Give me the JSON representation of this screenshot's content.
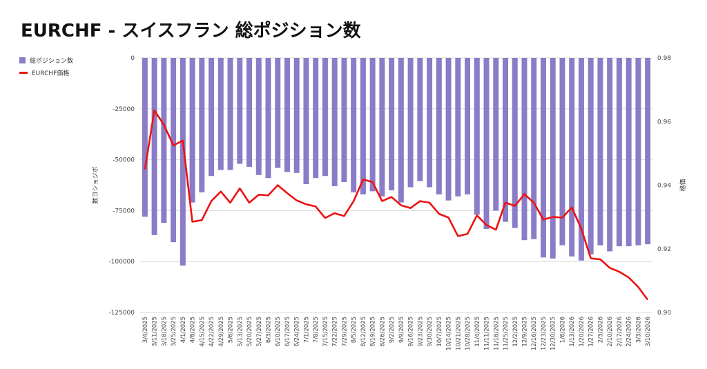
{
  "chart_data": {
    "type": "bar+line",
    "title": "EURCHF - スイスフラン 総ポジション数",
    "ylabel_left": "数ヨショジボ",
    "ylabel_right": "格価",
    "y_left_range": [
      -125000,
      0
    ],
    "y_left_ticks": [
      "0",
      "-25000",
      "-50000",
      "-75000",
      "-100000",
      "-125000"
    ],
    "y_right_range": [
      0.9,
      0.98
    ],
    "y_right_ticks": [
      "0.98",
      "0.96",
      "0.94",
      "0.92",
      "0.90"
    ],
    "grid": true,
    "legend_position": "top-left",
    "categories": [
      "3/4/2025",
      "3/11/2025",
      "3/18/2025",
      "3/25/2025",
      "4/1/2025",
      "4/8/2025",
      "4/15/2025",
      "4/22/2025",
      "4/29/2025",
      "5/6/2025",
      "5/13/2025",
      "5/20/2025",
      "5/27/2025",
      "6/3/2025",
      "6/10/2025",
      "6/17/2025",
      "6/24/2025",
      "7/1/2025",
      "7/8/2025",
      "7/15/2025",
      "7/22/2025",
      "7/29/2025",
      "8/5/2025",
      "8/12/2025",
      "8/19/2025",
      "8/26/2025",
      "9/2/2025",
      "9/9/2025",
      "9/16/2025",
      "9/23/2025",
      "9/30/2025",
      "10/7/2025",
      "10/14/2025",
      "10/21/2025",
      "10/28/2025",
      "11/4/2025",
      "11/11/2025",
      "11/18/2025",
      "11/25/2025",
      "12/2/2025",
      "12/9/2025",
      "12/16/2025",
      "12/23/2025",
      "12/30/2025",
      "1/6/2026",
      "1/13/2026",
      "1/20/2026",
      "1/27/2026",
      "2/3/2026",
      "2/10/2026",
      "2/17/2026",
      "2/24/2026",
      "3/3/2026",
      "3/10/2026"
    ],
    "series": [
      {
        "name": "総ポジション数",
        "type": "bar",
        "axis": "left",
        "color": "#8a7cc6",
        "values": [
          -78000,
          -87000,
          -81000,
          -90500,
          -102000,
          -71000,
          -66000,
          -58000,
          -55000,
          -55000,
          -52000,
          -53500,
          -57500,
          -59000,
          -54000,
          -56000,
          -56500,
          -62000,
          -59000,
          -58000,
          -63000,
          -61000,
          -66000,
          -67000,
          -65500,
          -68000,
          -65000,
          -71000,
          -63500,
          -60500,
          -63500,
          -67000,
          -70000,
          -68000,
          -67000,
          -77000,
          -84000,
          -75000,
          -80500,
          -83500,
          -89500,
          -89000,
          -98000,
          -98500,
          -92000,
          -97500,
          -99500,
          -96500,
          -92000,
          -95000,
          -92500,
          -92500,
          -92000,
          -91500
        ]
      },
      {
        "name": "EURCHF価格",
        "type": "line",
        "axis": "right",
        "color": "#ee1111",
        "values": [
          0.945,
          0.9635,
          0.959,
          0.9525,
          0.954,
          0.9285,
          0.929,
          0.935,
          0.938,
          0.9345,
          0.939,
          0.9345,
          0.937,
          0.9368,
          0.94,
          0.9375,
          0.9352,
          0.934,
          0.9333,
          0.9297,
          0.9312,
          0.9303,
          0.935,
          0.9418,
          0.941,
          0.935,
          0.9363,
          0.9337,
          0.9328,
          0.935,
          0.9345,
          0.931,
          0.9298,
          0.924,
          0.9247,
          0.9305,
          0.9275,
          0.926,
          0.9345,
          0.9335,
          0.9372,
          0.9345,
          0.9292,
          0.93,
          0.9298,
          0.933,
          0.9263,
          0.917,
          0.9167,
          0.914,
          0.9128,
          0.911,
          0.908,
          0.904
        ]
      }
    ]
  }
}
